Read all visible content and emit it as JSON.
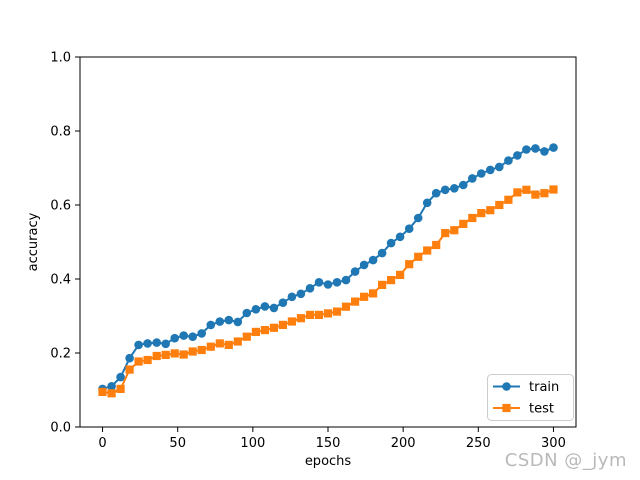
{
  "figure": {
    "background": "#ffffff"
  },
  "watermark": {
    "text": "CSDN @_jym",
    "color": "#b9b9b9"
  },
  "chart_data": {
    "type": "line",
    "title": "",
    "xlabel": "epochs",
    "ylabel": "accuracy",
    "xlim": [
      -15,
      315
    ],
    "ylim": [
      0.0,
      1.0
    ],
    "grid": false,
    "x_ticks": {
      "values": [
        0,
        50,
        100,
        150,
        200,
        250,
        300
      ],
      "labels": [
        "0",
        "50",
        "100",
        "150",
        "200",
        "250",
        "300"
      ]
    },
    "y_ticks": {
      "values": [
        0.0,
        0.2,
        0.4,
        0.6,
        0.8,
        1.0
      ],
      "labels": [
        "0.0",
        "0.2",
        "0.4",
        "0.6",
        "0.8",
        "1.0"
      ]
    },
    "legend": {
      "position": "lower right",
      "entries": [
        {
          "label": "train",
          "color": "#1f77b4",
          "marker": "circle"
        },
        {
          "label": "test",
          "color": "#ff7f0e",
          "marker": "square"
        }
      ]
    },
    "x": [
      0,
      6,
      12,
      18,
      24,
      30,
      36,
      42,
      48,
      54,
      60,
      66,
      72,
      78,
      84,
      90,
      96,
      102,
      108,
      114,
      120,
      126,
      132,
      138,
      144,
      150,
      156,
      162,
      168,
      174,
      180,
      186,
      192,
      198,
      204,
      210,
      216,
      222,
      228,
      234,
      240,
      246,
      252,
      258,
      264,
      270,
      276,
      282,
      288,
      294,
      300
    ],
    "series": [
      {
        "name": "train",
        "color": "#1f77b4",
        "marker": "circle",
        "values": [
          0.103,
          0.11,
          0.135,
          0.186,
          0.222,
          0.226,
          0.228,
          0.225,
          0.24,
          0.247,
          0.244,
          0.253,
          0.276,
          0.285,
          0.289,
          0.284,
          0.308,
          0.318,
          0.326,
          0.322,
          0.336,
          0.352,
          0.36,
          0.375,
          0.391,
          0.385,
          0.391,
          0.397,
          0.42,
          0.438,
          0.451,
          0.47,
          0.497,
          0.514,
          0.536,
          0.565,
          0.606,
          0.632,
          0.641,
          0.645,
          0.654,
          0.672,
          0.685,
          0.695,
          0.703,
          0.72,
          0.734,
          0.75,
          0.753,
          0.745,
          0.755
        ]
      },
      {
        "name": "test",
        "color": "#ff7f0e",
        "marker": "square",
        "values": [
          0.095,
          0.091,
          0.103,
          0.155,
          0.177,
          0.181,
          0.192,
          0.195,
          0.199,
          0.196,
          0.204,
          0.208,
          0.217,
          0.226,
          0.222,
          0.231,
          0.244,
          0.257,
          0.262,
          0.268,
          0.276,
          0.285,
          0.294,
          0.303,
          0.303,
          0.307,
          0.312,
          0.325,
          0.339,
          0.352,
          0.361,
          0.384,
          0.397,
          0.411,
          0.44,
          0.46,
          0.477,
          0.492,
          0.524,
          0.532,
          0.549,
          0.565,
          0.578,
          0.586,
          0.6,
          0.614,
          0.634,
          0.641,
          0.628,
          0.632,
          0.642
        ]
      }
    ]
  }
}
